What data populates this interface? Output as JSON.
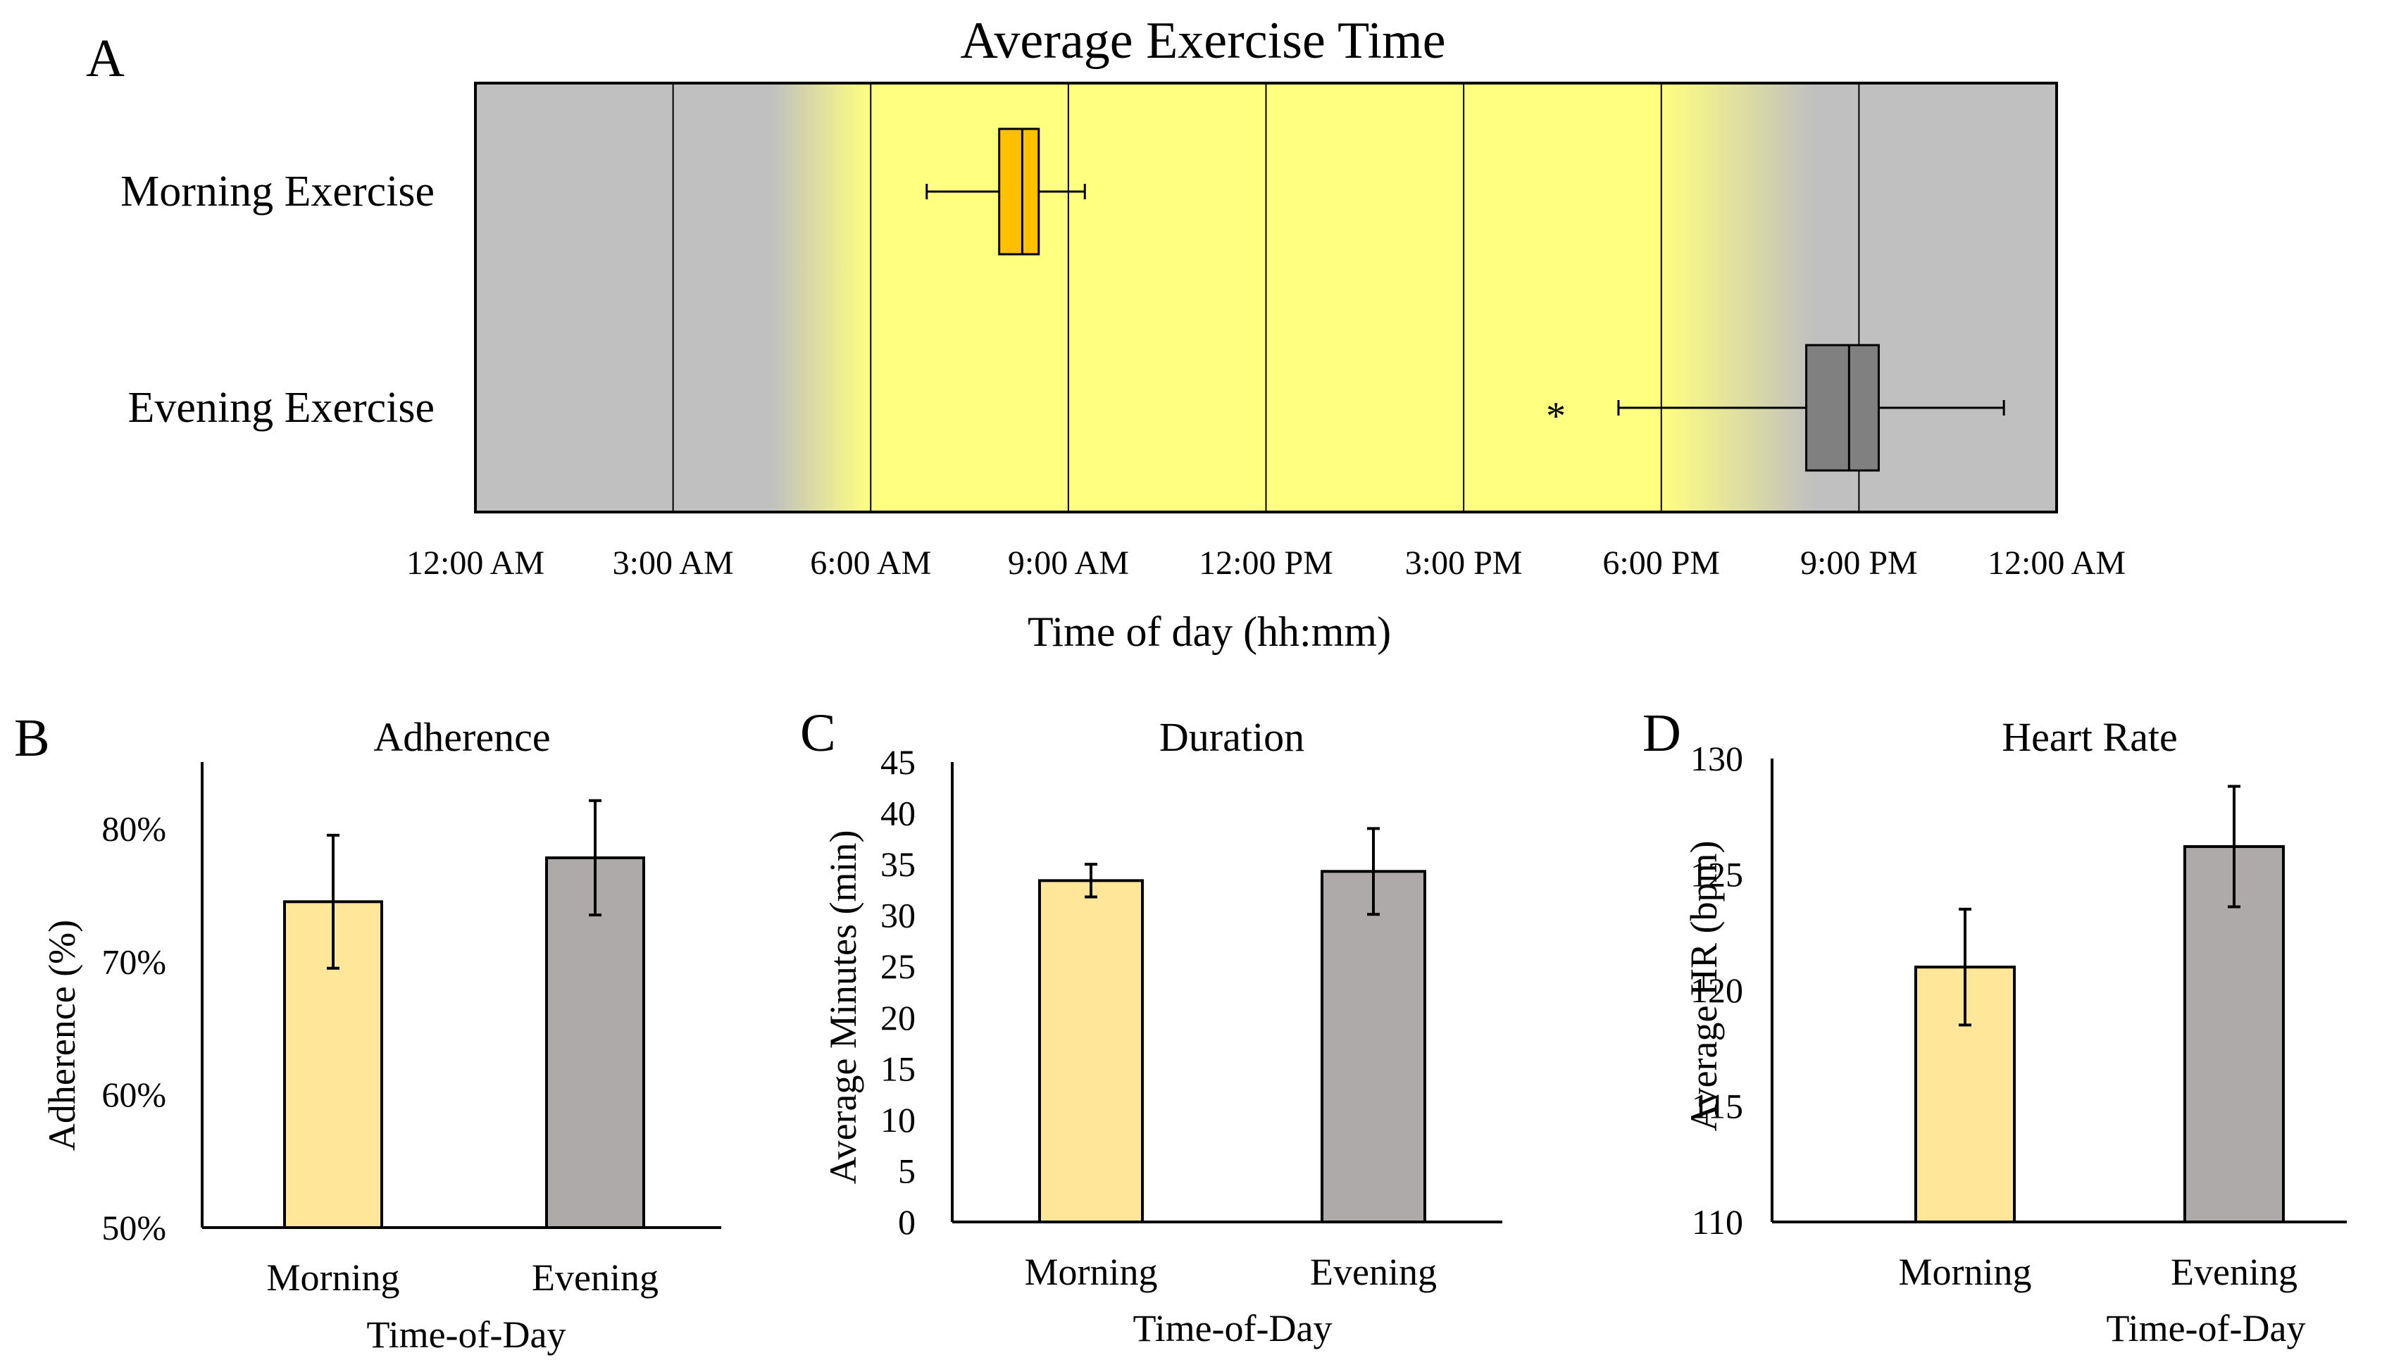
{
  "chart_data": [
    {
      "panel": "A",
      "type": "box",
      "title": "Average Exercise Time",
      "xlabel": "Time of day (hh:mm)",
      "x_unit": "hours after midnight",
      "xlim": [
        0,
        24
      ],
      "tick_values": [
        0,
        3,
        6,
        9,
        12,
        15,
        18,
        21,
        24
      ],
      "tick_labels": [
        "12:00 AM",
        "3:00 AM",
        "6:00 AM",
        "9:00 AM",
        "12:00 PM",
        "3:00 PM",
        "6:00 PM",
        "9:00 PM",
        "12:00 AM"
      ],
      "daylight": {
        "fade_in_start": 4.5,
        "full_start": 6,
        "full_end": 18,
        "fade_out_end": 20.3
      },
      "series": [
        {
          "name": "Morning Exercise",
          "whisker_low": 6.85,
          "q1": 7.95,
          "median": 8.3,
          "q3": 8.55,
          "whisker_high": 9.25,
          "outliers": [],
          "color": "#ffc000"
        },
        {
          "name": "Evening Exercise",
          "whisker_low": 17.35,
          "q1": 20.2,
          "median": 20.85,
          "q3": 21.3,
          "whisker_high": 23.2,
          "outliers": [
            16.4
          ],
          "color": "#808080"
        }
      ],
      "outlier_symbol": "*",
      "colors": {
        "night": "#c0c0c0",
        "day": "#ffff80"
      }
    },
    {
      "panel": "B",
      "type": "bar",
      "title": "Adherence",
      "xlabel": "Time-of-Day",
      "ylabel": "Adherence (%)",
      "categories": [
        "Morning",
        "Evening"
      ],
      "values": [
        74.5,
        77.8
      ],
      "error": [
        5.0,
        4.3
      ],
      "ylim": [
        50,
        85
      ],
      "ticks": [
        50,
        60,
        70,
        80
      ],
      "tick_labels": [
        "50%",
        "60%",
        "70%",
        "80%"
      ],
      "colors": [
        "#ffe699",
        "#aeaaaa"
      ]
    },
    {
      "panel": "C",
      "type": "bar",
      "title": "Duration",
      "xlabel": "Time-of-Day",
      "ylabel": "Average Minutes (min)",
      "categories": [
        "Morning",
        "Evening"
      ],
      "values": [
        33.4,
        34.3
      ],
      "error": [
        1.6,
        4.2
      ],
      "ylim": [
        0,
        45
      ],
      "ticks": [
        0,
        5,
        10,
        15,
        20,
        25,
        30,
        35,
        40,
        45
      ],
      "tick_labels": [
        "0",
        "5",
        "10",
        "15",
        "20",
        "25",
        "30",
        "35",
        "40",
        "45"
      ],
      "colors": [
        "#ffe699",
        "#aeaaaa"
      ]
    },
    {
      "panel": "D",
      "type": "bar",
      "title": "Heart Rate",
      "xlabel": "Time-of-Day",
      "ylabel": "Average HR (bpm)",
      "categories": [
        "Morning",
        "Evening"
      ],
      "values": [
        121.0,
        126.2
      ],
      "error": [
        2.5,
        2.6
      ],
      "ylim": [
        110,
        130
      ],
      "ticks": [
        110,
        115,
        120,
        125,
        130
      ],
      "tick_labels": [
        "110",
        "115",
        "120",
        "125",
        "130"
      ],
      "colors": [
        "#ffe699",
        "#aeaaaa"
      ]
    }
  ]
}
